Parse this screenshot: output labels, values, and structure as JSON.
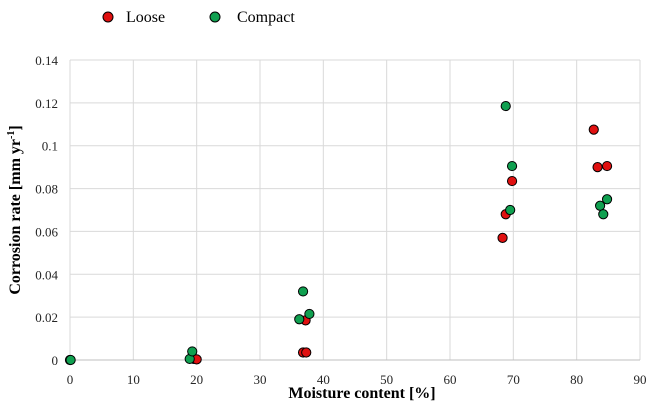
{
  "chart_data": {
    "type": "scatter",
    "xlabel": "Moisture content [%]",
    "ylabel": "Corrosion rate [mm yr",
    "ylabel_sup": "-1",
    "ylabel_end": "]",
    "xlim": [
      0,
      90
    ],
    "ylim": [
      0,
      0.14
    ],
    "x_ticks": [
      0,
      10,
      20,
      30,
      40,
      50,
      60,
      70,
      80,
      90
    ],
    "y_ticks": [
      0,
      0.02,
      0.04,
      0.06,
      0.08,
      0.1,
      0.12,
      0.14
    ],
    "y_tick_labels": [
      "0",
      "0.02",
      "0.04",
      "0.06",
      "0.08",
      "0.1",
      "0.12",
      "0.14"
    ],
    "grid": true,
    "legend_position": "top-left",
    "series": [
      {
        "name": "Loose",
        "color": "#e01010",
        "points": [
          [
            0.0,
            0.0
          ],
          [
            19.5,
            0.0005
          ],
          [
            20.0,
            0.0003
          ],
          [
            36.8,
            0.0035
          ],
          [
            37.3,
            0.0035
          ],
          [
            37.2,
            0.0185
          ],
          [
            68.3,
            0.057
          ],
          [
            68.8,
            0.068
          ],
          [
            69.8,
            0.0835
          ],
          [
            82.7,
            0.1075
          ],
          [
            83.3,
            0.09
          ],
          [
            84.8,
            0.0905
          ]
        ]
      },
      {
        "name": "Compact",
        "color": "#10a050",
        "points": [
          [
            0.1,
            0.0
          ],
          [
            18.9,
            0.0005
          ],
          [
            19.3,
            0.004
          ],
          [
            36.2,
            0.019
          ],
          [
            36.8,
            0.032
          ],
          [
            37.8,
            0.0215
          ],
          [
            68.8,
            0.1185
          ],
          [
            69.8,
            0.0905
          ],
          [
            69.5,
            0.07
          ],
          [
            83.7,
            0.072
          ],
          [
            84.2,
            0.068
          ],
          [
            84.8,
            0.075
          ]
        ]
      }
    ]
  }
}
